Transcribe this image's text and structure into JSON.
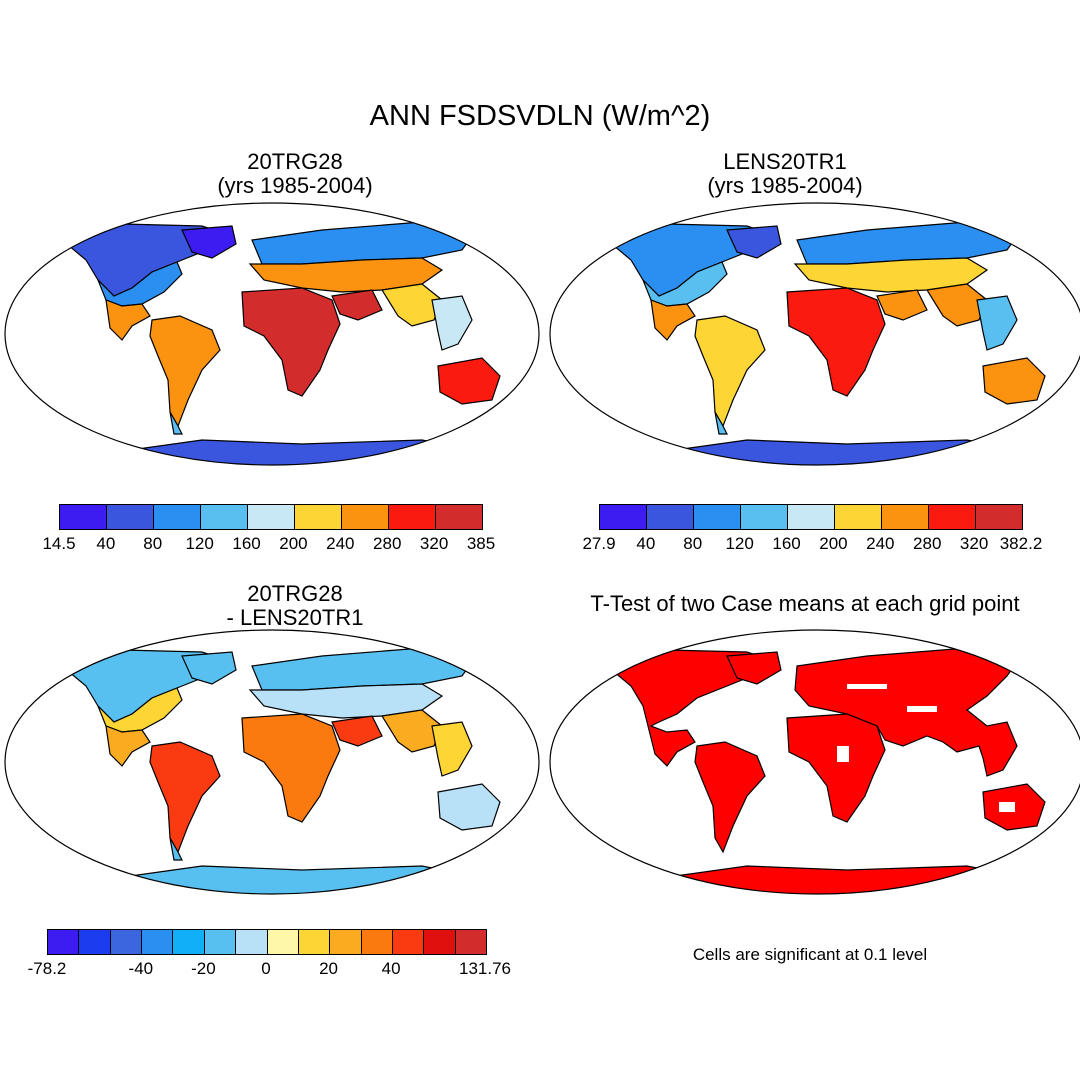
{
  "title": "ANN FSDSVDLN (W/m^2)",
  "panels": [
    {
      "title_line1": "20TRG28",
      "title_line2": "(yrs 1985-2004)"
    },
    {
      "title_line1": "LENS20TR1",
      "title_line2": "(yrs 1985-2004)"
    },
    {
      "title_line1": "20TRG28",
      "title_line2": "- LENS20TR1"
    },
    {
      "title_line1": "T-Test of two Case means at each grid point",
      "title_line2": ""
    }
  ],
  "colorbars": [
    {
      "colors": [
        "#3d1cf2",
        "#3a56de",
        "#2a8ff0",
        "#58bff0",
        "#c9e8f6",
        "#fdd535",
        "#fb9210",
        "#fa1a10",
        "#d22c2c"
      ],
      "ticks": [
        "14.5",
        "40",
        "80",
        "120",
        "160",
        "200",
        "240",
        "280",
        "320",
        "385"
      ]
    },
    {
      "colors": [
        "#3d1cf2",
        "#3a56de",
        "#2a8ff0",
        "#58bff0",
        "#c9e8f6",
        "#fdd535",
        "#fb9210",
        "#fa1a10",
        "#d22c2c"
      ],
      "ticks": [
        "27.9",
        "40",
        "80",
        "120",
        "160",
        "200",
        "240",
        "280",
        "320",
        "382.2"
      ]
    },
    {
      "colors": [
        "#3d1cf2",
        "#1c3cf0",
        "#3a66e0",
        "#2a8ff0",
        "#10b0f8",
        "#58c0f0",
        "#b8e0f6",
        "#fff7a8",
        "#fdd535",
        "#fbab20",
        "#fb7a10",
        "#fa3a10",
        "#e0100e",
        "#d22c2c"
      ],
      "ticks": [
        "-78.2",
        "-40",
        "-20",
        "0",
        "20",
        "40",
        "131.76"
      ],
      "tick_edges": [
        0,
        3,
        5,
        7,
        9,
        11,
        14
      ]
    }
  ],
  "significance_color": "#ff0000",
  "significance_note": "Cells are significant at 0.1 level"
}
